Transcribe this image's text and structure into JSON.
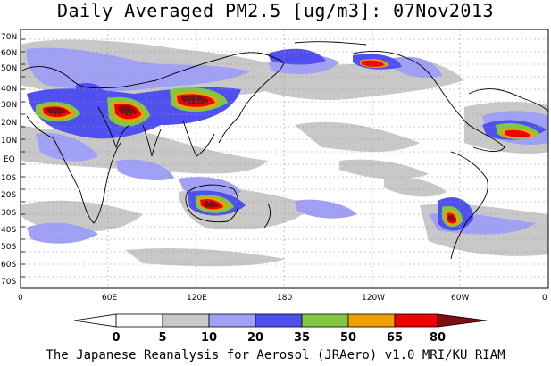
{
  "title": "Daily Averaged PM2.5 [ug/m3]: 07Nov2013",
  "footer": "The Japanese Reanalysis for Aerosol (JRAero) v1.0 MRI/KU_RIAM",
  "lat_labels": [
    "70N",
    "60N",
    "50N",
    "40N",
    "30N",
    "20N",
    "10N",
    "EQ",
    "10S",
    "20S",
    "30S",
    "40S",
    "50S",
    "60S",
    "70S"
  ],
  "lon_labels": [
    "0",
    "60E",
    "120E",
    "180",
    "120W",
    "60W",
    "0"
  ],
  "colorbar": {
    "ticks": [
      "0",
      "5",
      "10",
      "20",
      "35",
      "50",
      "65",
      "80"
    ],
    "colors": [
      "#ffffff",
      "#c8c8c8",
      "#a0a0f5",
      "#5050f0",
      "#80c840",
      "#f0a000",
      "#f00000",
      "#801010"
    ]
  }
}
